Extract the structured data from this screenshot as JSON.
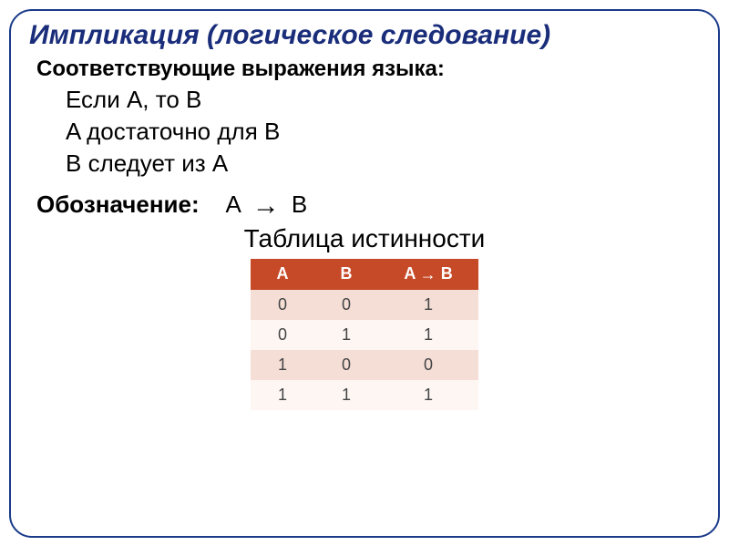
{
  "title": "Импликация (логическое следование)",
  "subtitle": "Соответствующие выражения языка:",
  "expressions": [
    "Если A, то B",
    "A достаточно для B",
    "B следует из A"
  ],
  "notation": {
    "label": "Обозначение:",
    "lhs": "A",
    "rhs": "B"
  },
  "table": {
    "caption": "Таблица истинности",
    "headers": {
      "a": "A",
      "b": "B",
      "res_lhs": "A",
      "res_rhs": "B"
    },
    "rows": [
      {
        "a": "0",
        "b": "0",
        "r": "1"
      },
      {
        "a": "0",
        "b": "1",
        "r": "1"
      },
      {
        "a": "1",
        "b": "0",
        "r": "0"
      },
      {
        "a": "1",
        "b": "1",
        "r": "1"
      }
    ],
    "header_bg": "#c64a28",
    "header_fg": "#ffffff",
    "row_even_bg": "#f4ded6",
    "row_odd_bg": "#fdf6f3"
  },
  "colors": {
    "title": "#1a2d7a",
    "border": "#1a3a8a",
    "text": "#000000"
  }
}
